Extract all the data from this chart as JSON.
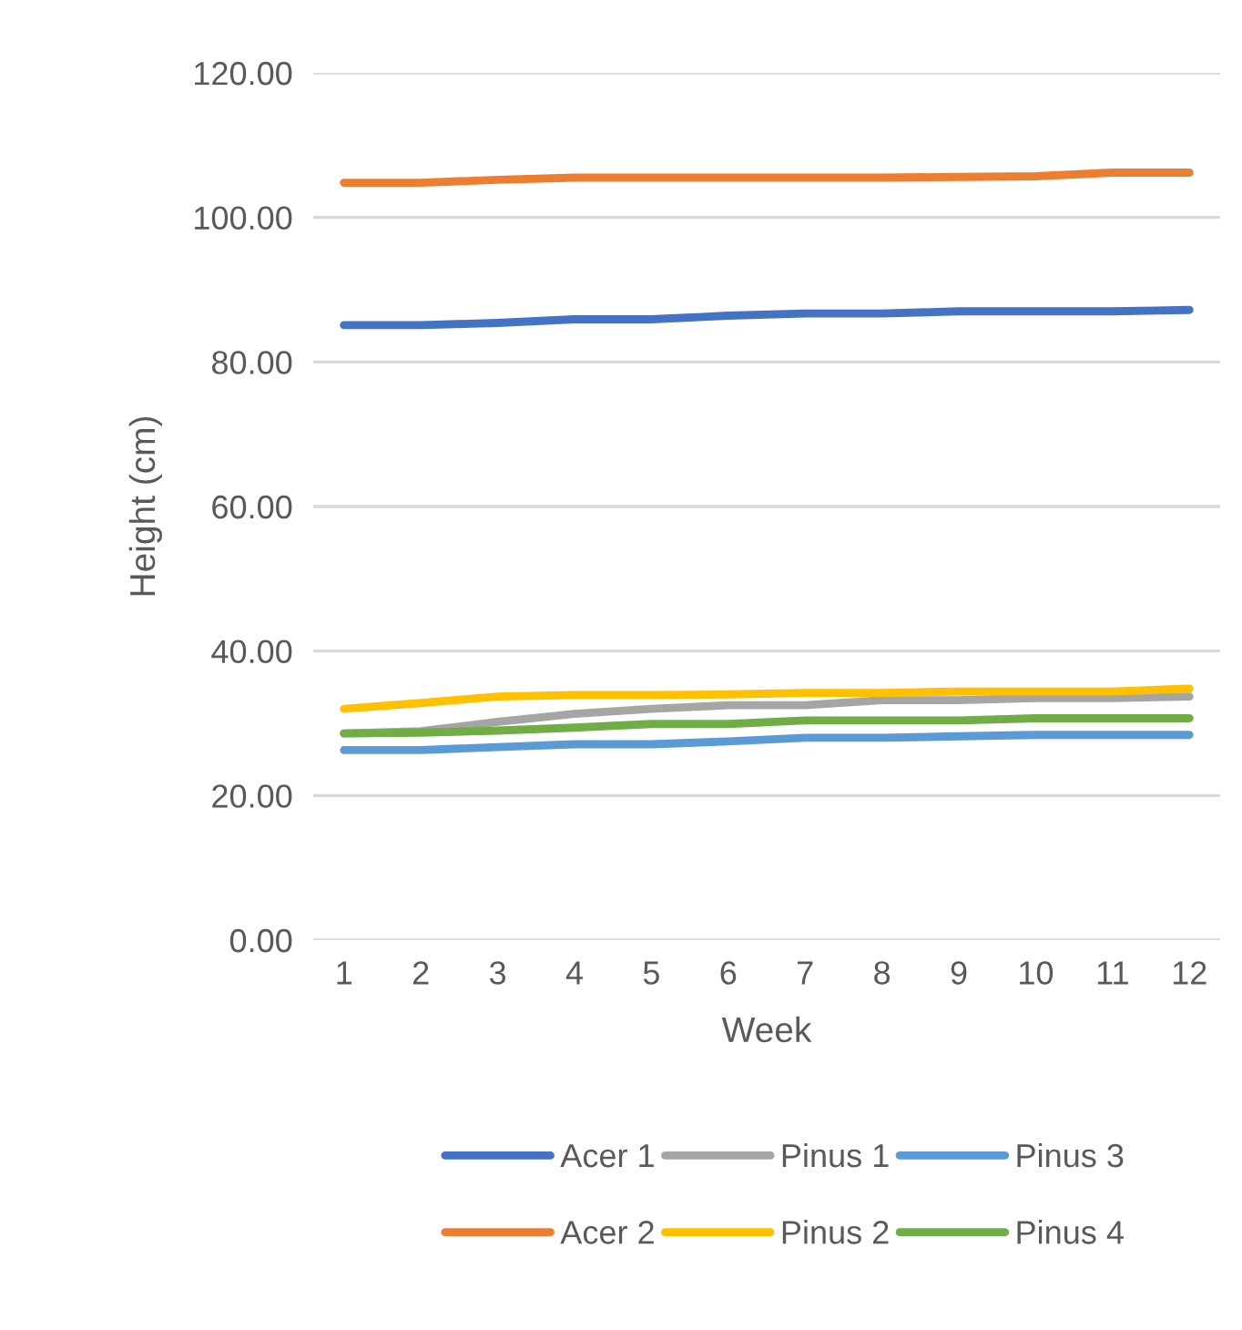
{
  "chart_data": {
    "type": "line",
    "xlabel": "Week",
    "ylabel": "Height (cm)",
    "categories": [
      "1",
      "2",
      "3",
      "4",
      "5",
      "6",
      "7",
      "8",
      "9",
      "10",
      "11",
      "12"
    ],
    "series": [
      {
        "name": "Acer 1",
        "color": "#4472c4",
        "values": [
          85.1,
          85.1,
          85.4,
          85.9,
          85.9,
          86.4,
          86.7,
          86.7,
          87.0,
          87.0,
          87.0,
          87.2
        ]
      },
      {
        "name": "Acer 2",
        "color": "#ed7d31",
        "values": [
          104.8,
          104.8,
          105.2,
          105.5,
          105.5,
          105.5,
          105.5,
          105.5,
          105.6,
          105.7,
          106.2,
          106.2
        ]
      },
      {
        "name": "Pinus 1",
        "color": "#a5a5a5",
        "values": [
          28.6,
          28.9,
          30.2,
          31.3,
          32.0,
          32.5,
          32.5,
          33.2,
          33.2,
          33.5,
          33.5,
          33.7
        ]
      },
      {
        "name": "Pinus 2",
        "color": "#ffc000",
        "values": [
          32.0,
          32.8,
          33.7,
          33.9,
          33.9,
          34.0,
          34.2,
          34.2,
          34.4,
          34.4,
          34.4,
          34.8
        ]
      },
      {
        "name": "Pinus 3",
        "color": "#5b9bd5",
        "values": [
          26.3,
          26.3,
          26.7,
          27.1,
          27.1,
          27.5,
          28.0,
          28.0,
          28.2,
          28.4,
          28.4,
          28.4
        ]
      },
      {
        "name": "Pinus 4",
        "color": "#70ad47",
        "values": [
          28.6,
          28.7,
          29.0,
          29.4,
          29.9,
          29.9,
          30.4,
          30.4,
          30.4,
          30.7,
          30.7,
          30.7
        ]
      }
    ],
    "ylim": [
      0,
      120
    ],
    "yticks": [
      {
        "value": 0,
        "label": "0.00"
      },
      {
        "value": 20,
        "label": "20.00"
      },
      {
        "value": 40,
        "label": "40.00"
      },
      {
        "value": 60,
        "label": "60.00"
      },
      {
        "value": 80,
        "label": "80.00"
      },
      {
        "value": 100,
        "label": "100.00"
      },
      {
        "value": 120,
        "label": "120.00"
      }
    ],
    "grid": "y",
    "legend": "bottom",
    "marker": "none",
    "line_style": "solid"
  }
}
